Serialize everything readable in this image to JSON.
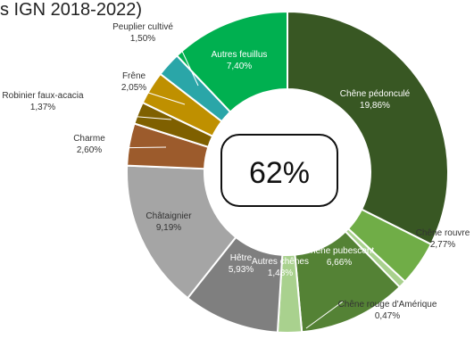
{
  "chart_data": {
    "type": "pie",
    "variant": "donut",
    "title": "s IGN 2018-2022)",
    "center_label": "62%",
    "categories": [
      "Chêne pédonculé",
      "Chêne rouvre",
      "Chêne rouge d'Amérique",
      "Chêne pubescent",
      "Autres chênes",
      "Hêtre",
      "Châtaignier",
      "Charme",
      "Robinier faux-acacia",
      "Frêne",
      "Peuplier cultivé",
      "Autres feuillus"
    ],
    "values": [
      19.86,
      2.77,
      0.47,
      6.66,
      1.48,
      5.93,
      9.19,
      2.6,
      1.37,
      2.05,
      1.5,
      7.4
    ],
    "value_labels": [
      "19,86%",
      "2,77%",
      "0,47%",
      "6,66%",
      "1,48%",
      "5,93%",
      "9,19%",
      "2,60%",
      "1,37%",
      "2,05%",
      "1,50%",
      "7,40%"
    ],
    "colors": [
      "#385723",
      "#70AD47",
      "#A9D18E",
      "#548235",
      "#A9D18E",
      "#7F7F7F",
      "#A5A5A5",
      "#9C5B2C",
      "#7F6000",
      "#BF9000",
      "#2AA6A8",
      "#00B050"
    ],
    "label_colors": [
      "#ffffff",
      "#333333",
      "#333333",
      "#ffffff",
      "#ffffff",
      "#ffffff",
      "#333333",
      "#333333",
      "#333333",
      "#333333",
      "#333333",
      "#ffffff"
    ]
  }
}
